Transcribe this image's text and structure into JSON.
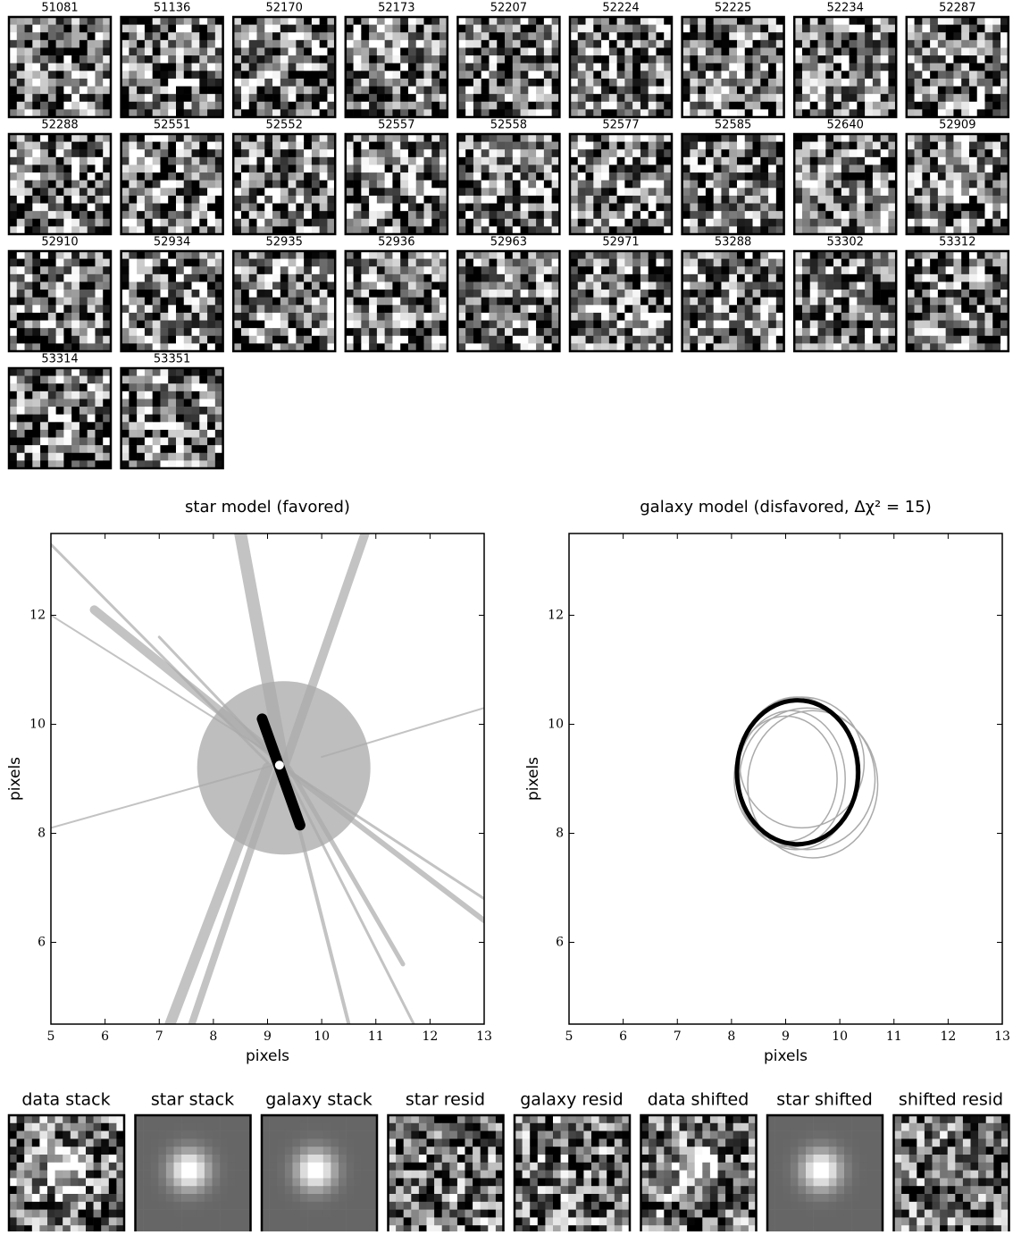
{
  "epochs": [
    "51081",
    "51136",
    "52170",
    "52173",
    "52207",
    "52224",
    "52225",
    "52234",
    "52287",
    "52288",
    "52551",
    "52552",
    "52557",
    "52558",
    "52577",
    "52585",
    "52640",
    "52909",
    "52910",
    "52934",
    "52935",
    "52936",
    "52963",
    "52971",
    "53288",
    "53302",
    "53312",
    "53314",
    "53351"
  ],
  "chart_data": [
    {
      "type": "tracks",
      "title": "star model (favored)",
      "xlabel": "pixels",
      "ylabel": "pixels",
      "xlim": [
        5,
        13
      ],
      "ylim": [
        4.5,
        13.5
      ],
      "xticks": [
        5,
        6,
        7,
        8,
        9,
        10,
        11,
        12,
        13
      ],
      "yticks": [
        6,
        8,
        10,
        12
      ],
      "track_color": "#aaaaaa",
      "tracks": [
        {
          "x": [
            5,
            9
          ],
          "y": [
            13.3,
            9.3
          ]
        },
        {
          "x": [
            5,
            9
          ],
          "y": [
            12,
            9.5
          ]
        },
        {
          "x": [
            5.8,
            9.3
          ],
          "y": [
            12.1,
            9.3
          ]
        },
        {
          "x": [
            5,
            9.3
          ],
          "y": [
            8.1,
            9.3
          ]
        },
        {
          "x": [
            10,
            13
          ],
          "y": [
            9.4,
            10.3
          ]
        },
        {
          "x": [
            9.3,
            13
          ],
          "y": [
            9.2,
            6.4
          ]
        },
        {
          "x": [
            9.3,
            13
          ],
          "y": [
            9.2,
            6.8
          ]
        },
        {
          "x": [
            7.2,
            9
          ],
          "y": [
            4.5,
            9.2
          ]
        },
        {
          "x": [
            7.6,
            9.2
          ],
          "y": [
            4.5,
            9.2
          ]
        },
        {
          "x": [
            9.3,
            10.5
          ],
          "y": [
            9.2,
            4.5
          ]
        },
        {
          "x": [
            9.3,
            11.7
          ],
          "y": [
            9.2,
            4.5
          ]
        },
        {
          "x": [
            8.5,
            9.3
          ],
          "y": [
            13.5,
            9.2
          ]
        },
        {
          "x": [
            10.8,
            9.3
          ],
          "y": [
            13.5,
            9.2
          ]
        },
        {
          "x": [
            7,
            9.3
          ],
          "y": [
            11.6,
            9.2
          ]
        },
        {
          "x": [
            9.4,
            11.5
          ],
          "y": [
            9.2,
            5.6
          ]
        }
      ],
      "disk": {
        "x": 9.3,
        "y": 9.2,
        "r": 1.6
      },
      "bar": {
        "x": [
          8.9,
          9.6
        ],
        "y": [
          10.1,
          8.15
        ]
      },
      "star": {
        "x": 9.22,
        "y": 9.25
      }
    },
    {
      "type": "ellipse",
      "title": "galaxy model (disfavored, Δχ² = 15)",
      "xlabel": "pixels",
      "ylabel": "pixels",
      "xlim": [
        5,
        13
      ],
      "ylim": [
        4.5,
        13.5
      ],
      "xticks": [
        5,
        6,
        7,
        8,
        9,
        10,
        11,
        12,
        13
      ],
      "yticks": [
        6,
        8,
        10,
        12
      ],
      "ellipses": [
        {
          "x": 9.1,
          "y": 9.0,
          "rx": 1.0,
          "ry": 1.25,
          "color": "#aaaaaa"
        },
        {
          "x": 9.4,
          "y": 9.0,
          "rx": 1.25,
          "ry": 1.3,
          "color": "#aaaaaa"
        },
        {
          "x": 9.2,
          "y": 9.1,
          "rx": 1.1,
          "ry": 1.4,
          "color": "#aaaaaa"
        },
        {
          "x": 9.3,
          "y": 9.3,
          "rx": 1.15,
          "ry": 1.2,
          "color": "#aaaaaa"
        },
        {
          "x": 9.0,
          "y": 9.0,
          "rx": 0.95,
          "ry": 1.15,
          "color": "#aaaaaa"
        },
        {
          "x": 9.5,
          "y": 8.9,
          "rx": 1.2,
          "ry": 1.35,
          "color": "#aaaaaa"
        },
        {
          "x": 9.22,
          "y": 9.12,
          "rx": 1.12,
          "ry": 1.32,
          "color": "#000000"
        }
      ]
    }
  ],
  "stamps": [
    "data stack",
    "star stack",
    "galaxy stack",
    "star resid",
    "galaxy resid",
    "data shifted",
    "star shifted",
    "shifted resid"
  ]
}
